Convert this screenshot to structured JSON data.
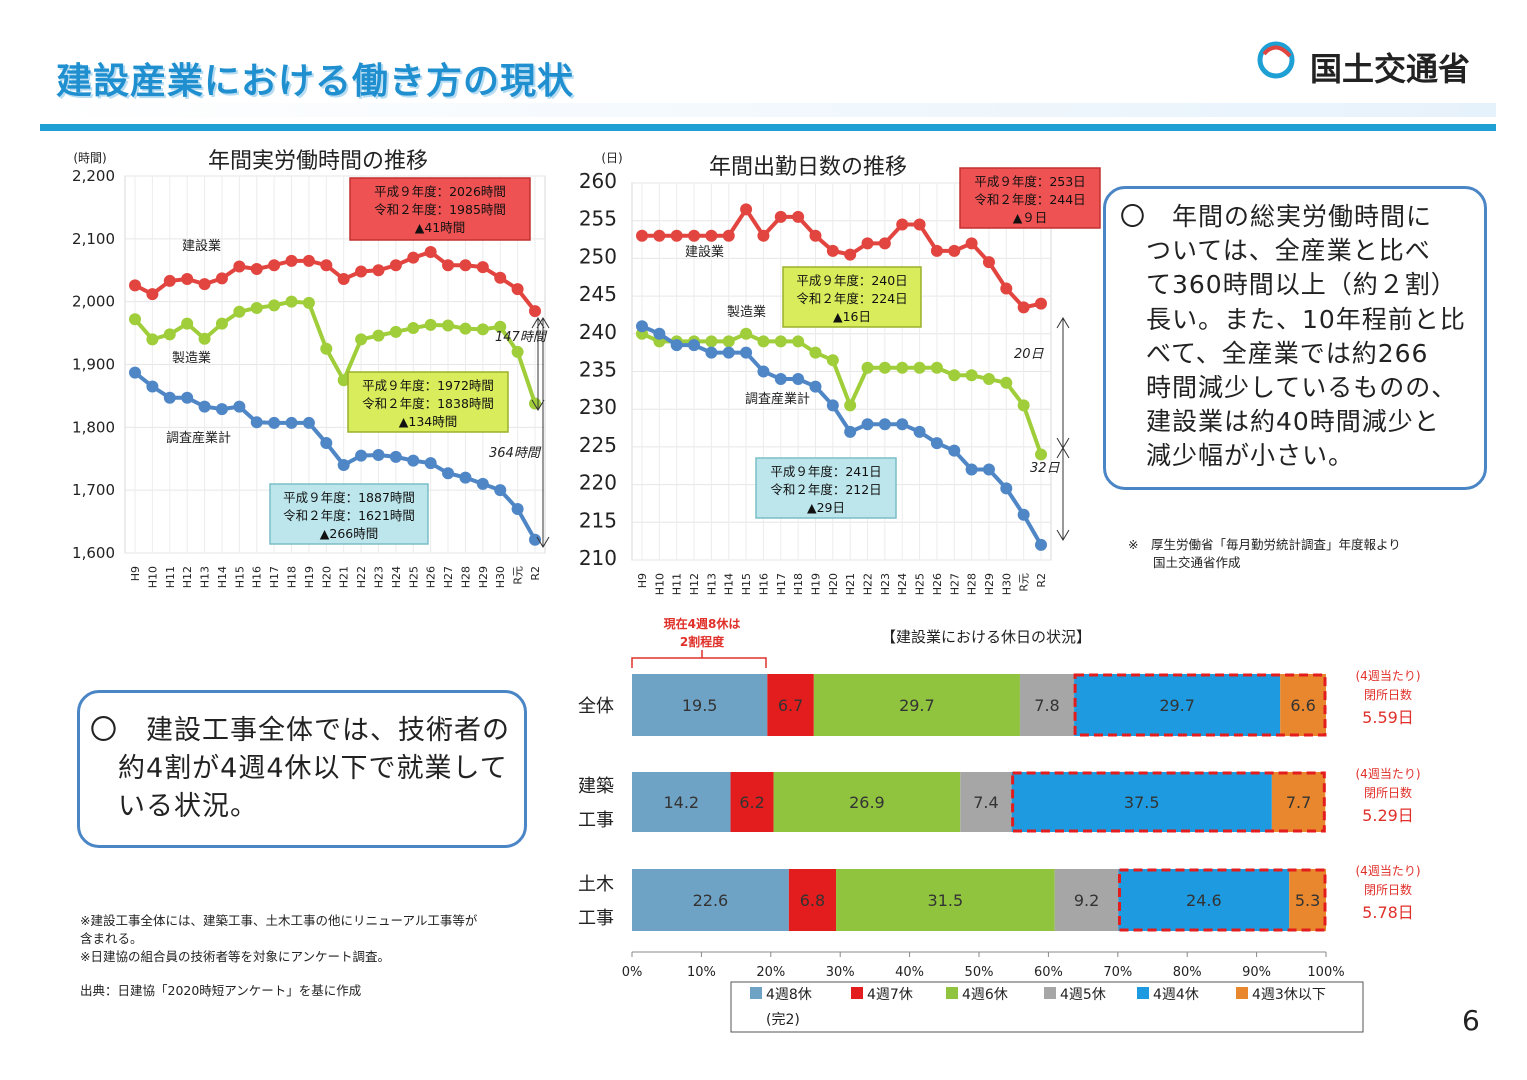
{
  "header": {
    "title": "建設産業における働き方の現状",
    "ministry": "国土交通省"
  },
  "colors": {
    "construction": "#e2453f",
    "manufacturing": "#9fce3a",
    "all_industries": "#4f86c6",
    "accent_blue": "#1fa0d4",
    "note_red": "#e0302a"
  },
  "info_box_1": {
    "text": "〇　年間の総実労働時間に\n　ついては、全産業と比べ\n　て360時間以上（約２割）\n　長い。また、10年程前と比\n　べて、全産業では約266\n　時間減少しているものの、\n　建設業は約40時間減少と\n　減少幅が小さい。"
  },
  "info_box_2": {
    "text": "〇　建設工事全体では、技術者の\n　約4割が4週4休以下で就業して\n　いる状況。"
  },
  "source_note_1": "※　厚生労働省「毎月勤労統計調査」年度報より\n　　国土交通省作成",
  "footnotes": "※建設工事全体には、建築工事、土木工事の他にリニューアル工事等が\n含まれる。\n※日建協の組合員の技術者等を対象にアンケート調査。",
  "source_note_2": "出典：日建協「2020時短アンケート」を基に作成",
  "page_number": "6",
  "chart_data": [
    {
      "type": "line",
      "title": "年間実労働時間の推移",
      "ylabel": "(時間)",
      "ylim": [
        1600,
        2200
      ],
      "yticks": [
        "1,600",
        "1,700",
        "1,800",
        "1,900",
        "2,000",
        "2,100",
        "2,200"
      ],
      "x": [
        "H9",
        "H10",
        "H11",
        "H12",
        "H13",
        "H14",
        "H15",
        "H16",
        "H17",
        "H18",
        "H19",
        "H20",
        "H21",
        "H22",
        "H23",
        "H24",
        "H25",
        "H26",
        "H27",
        "H28",
        "H29",
        "H30",
        "R元",
        "R2"
      ],
      "series": [
        {
          "name": "建設業",
          "values": [
            2026,
            2012,
            2033,
            2036,
            2028,
            2037,
            2056,
            2052,
            2058,
            2065,
            2065,
            2058,
            2036,
            2048,
            2050,
            2058,
            2070,
            2079,
            2058,
            2058,
            2055,
            2038,
            2020,
            1985
          ]
        },
        {
          "name": "製造業",
          "values": [
            1972,
            1940,
            1948,
            1965,
            1941,
            1965,
            1984,
            1990,
            1994,
            2000,
            1998,
            1925,
            1875,
            1940,
            1946,
            1952,
            1958,
            1963,
            1962,
            1957,
            1956,
            1960,
            1920,
            1838
          ]
        },
        {
          "name": "調査産業計",
          "values": [
            1887,
            1865,
            1847,
            1847,
            1833,
            1829,
            1833,
            1808,
            1807,
            1807,
            1807,
            1775,
            1740,
            1755,
            1756,
            1753,
            1747,
            1743,
            1727,
            1720,
            1710,
            1700,
            1670,
            1621
          ]
        }
      ],
      "callouts": [
        {
          "series": "建設業",
          "lines": [
            "平成９年度：2026時間",
            "令和２年度：1985時間",
            "▲41時間"
          ]
        },
        {
          "series": "製造業",
          "lines": [
            "平成９年度：1972時間",
            "令和２年度：1838時間",
            "▲134時間"
          ]
        },
        {
          "series": "調査産業計",
          "lines": [
            "平成９年度：1887時間",
            "令和２年度：1621時間",
            "▲266時間"
          ]
        }
      ],
      "gap_labels": [
        "147時間",
        "364時間"
      ]
    },
    {
      "type": "line",
      "title": "年間出勤日数の推移",
      "ylabel": "(日)",
      "ylim": [
        210,
        260
      ],
      "yticks": [
        "210",
        "215",
        "220",
        "225",
        "230",
        "235",
        "240",
        "245",
        "250",
        "255",
        "260"
      ],
      "x": [
        "H9",
        "H10",
        "H11",
        "H12",
        "H13",
        "H14",
        "H15",
        "H16",
        "H17",
        "H18",
        "H19",
        "H20",
        "H21",
        "H22",
        "H23",
        "H24",
        "H25",
        "H26",
        "H27",
        "H28",
        "H29",
        "H30",
        "R元",
        "R2"
      ],
      "series": [
        {
          "name": "建設業",
          "values": [
            253,
            253,
            253,
            253,
            253,
            253,
            256.5,
            253,
            255.5,
            255.5,
            253,
            251,
            250.5,
            252,
            252,
            254.5,
            254.5,
            251,
            251,
            252,
            249.5,
            246,
            243.5,
            244
          ]
        },
        {
          "name": "製造業",
          "values": [
            240,
            239,
            239,
            239,
            239,
            239,
            240,
            239,
            239,
            239,
            237.5,
            236.5,
            230.5,
            235.5,
            235.5,
            235.5,
            235.5,
            235.5,
            234.5,
            234.5,
            234,
            233.5,
            230.5,
            224
          ]
        },
        {
          "name": "調査産業計",
          "values": [
            241,
            240,
            238.5,
            238.5,
            237.5,
            237.5,
            237.5,
            235,
            234,
            234,
            233,
            230.5,
            227,
            228,
            228,
            228,
            227,
            225.5,
            224.5,
            222,
            222,
            219.5,
            216,
            212
          ]
        }
      ],
      "callouts": [
        {
          "series": "建設業",
          "lines": [
            "平成９年度：253日",
            "令和２年度：244日",
            "▲９日"
          ]
        },
        {
          "series": "製造業",
          "lines": [
            "平成９年度：240日",
            "令和２年度：224日",
            "▲16日"
          ]
        },
        {
          "series": "調査産業計",
          "lines": [
            "平成９年度：241日",
            "令和２年度：212日",
            "▲29日"
          ]
        }
      ],
      "gap_labels": [
        "20日",
        "32日"
      ]
    },
    {
      "type": "bar",
      "orientation": "horizontal-stacked-100",
      "title": "【建設業における休日の状況】",
      "categories": [
        "全体",
        "建築工事",
        "土木工事"
      ],
      "xticks": [
        "0%",
        "10%",
        "20%",
        "30%",
        "40%",
        "50%",
        "60%",
        "70%",
        "80%",
        "90%",
        "100%"
      ],
      "series": [
        {
          "name": "4週8休(完2)",
          "color": "#6fa3c6",
          "values": [
            19.5,
            14.2,
            22.6
          ]
        },
        {
          "name": "4週7休",
          "color": "#e31d1d",
          "values": [
            6.7,
            6.2,
            6.8
          ]
        },
        {
          "name": "4週6休",
          "color": "#90c43f",
          "values": [
            29.7,
            26.9,
            31.5
          ]
        },
        {
          "name": "4週5休",
          "color": "#a6a6a6",
          "values": [
            7.8,
            7.4,
            9.2
          ]
        },
        {
          "name": "4週4休",
          "color": "#1e9be0",
          "values": [
            29.7,
            37.5,
            24.6
          ]
        },
        {
          "name": "4週3休以下",
          "color": "#e9872e",
          "values": [
            6.6,
            7.7,
            5.3
          ]
        }
      ],
      "legend_placement": "bottom",
      "annotation_top": [
        "現在4週8休は",
        "2割程度"
      ],
      "closed_days": [
        {
          "label": "(4週当たり)",
          "sub": "閉所日数",
          "value": "5.59日"
        },
        {
          "label": "(4週当たり)",
          "sub": "閉所日数",
          "value": "5.29日"
        },
        {
          "label": "(4週当たり)",
          "sub": "閉所日数",
          "value": "5.78日"
        }
      ]
    }
  ]
}
